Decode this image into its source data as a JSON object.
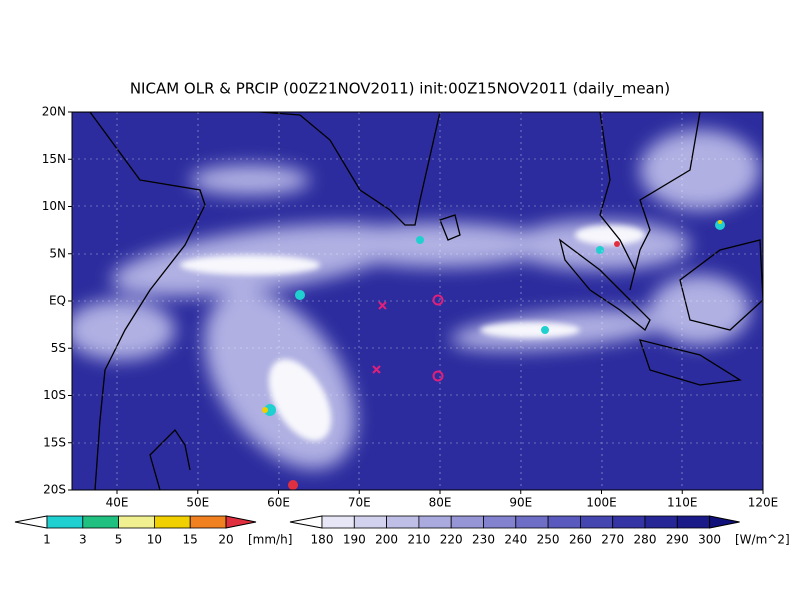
{
  "title": "NICAM OLR & PRCIP (00Z21NOV2011) init:00Z15NOV2011 (daily_mean)",
  "lat_labels": [
    "20N",
    "15N",
    "10N",
    "5N",
    "EQ",
    "5S",
    "10S",
    "15S",
    "20S"
  ],
  "lon_labels": [
    "40E",
    "50E",
    "60E",
    "70E",
    "80E",
    "90E",
    "100E",
    "110E",
    "120E"
  ],
  "precip_colorbar": {
    "labels": [
      "1",
      "3",
      "5",
      "10",
      "15",
      "20"
    ],
    "unit": "[mm/h]"
  },
  "olr_colorbar": {
    "labels": [
      "180",
      "190",
      "200",
      "210",
      "220",
      "230",
      "240",
      "250",
      "260",
      "270",
      "280",
      "290",
      "300"
    ],
    "unit": "[W/m^2]"
  }
}
